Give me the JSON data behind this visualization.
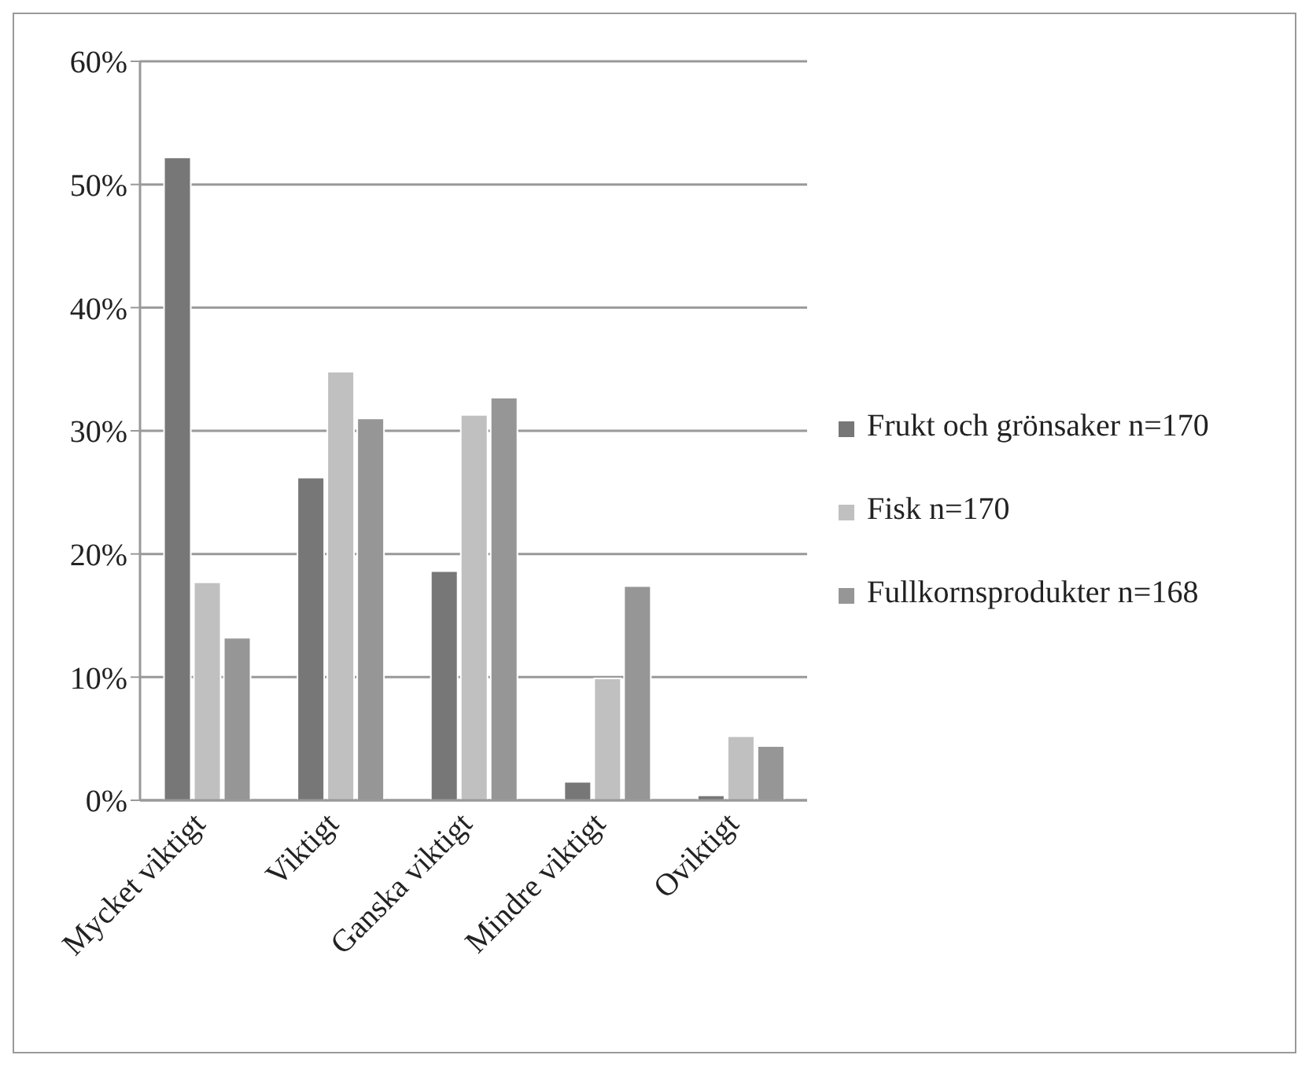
{
  "chart_data": {
    "type": "bar",
    "categories": [
      "Mycket viktigt",
      "Viktigt",
      "Ganska viktigt",
      "Mindre viktigt",
      "Oviktigt"
    ],
    "series": [
      {
        "name": "Frukt och grönsaker n=170",
        "color": "#777777",
        "values": [
          52.2,
          26.2,
          18.6,
          1.5,
          0.4
        ]
      },
      {
        "name": "Fisk n=170",
        "color": "#c0c0c0",
        "values": [
          17.7,
          34.8,
          31.3,
          9.9,
          5.2
        ]
      },
      {
        "name": "Fullkornsprodukter n=168",
        "color": "#969696",
        "values": [
          13.2,
          31.0,
          32.7,
          17.4,
          4.4
        ]
      }
    ],
    "ylim": [
      0,
      60
    ],
    "yticks": [
      {
        "value": 0,
        "label": "0%"
      },
      {
        "value": 10,
        "label": "10%"
      },
      {
        "value": 20,
        "label": "20%"
      },
      {
        "value": 30,
        "label": "30%"
      },
      {
        "value": 40,
        "label": "40%"
      },
      {
        "value": 50,
        "label": "50%"
      },
      {
        "value": 60,
        "label": "60%"
      }
    ],
    "grid": "y",
    "legend": "right"
  }
}
